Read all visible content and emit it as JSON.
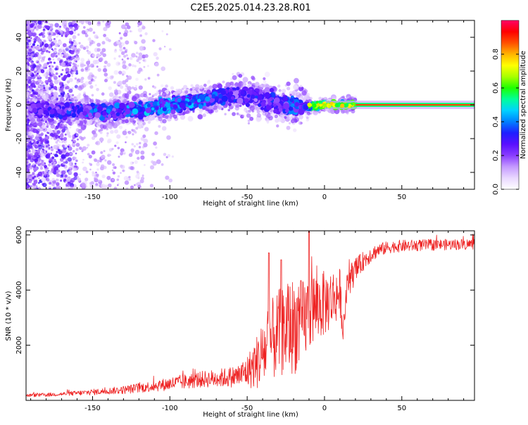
{
  "title": "C2E5.2025.014.23.28.R01",
  "chart_data": [
    {
      "type": "heatmap",
      "xlabel": "Height of straight line (km)",
      "ylabel": "Frequency (Hz)",
      "xlim": [
        -193,
        97
      ],
      "ylim": [
        -50,
        50
      ],
      "xticks": [
        -150,
        -100,
        -50,
        0,
        50
      ],
      "xtick_labels": [
        "-150",
        "-100",
        "-50",
        "0",
        "50"
      ],
      "yticks": [
        -40,
        -20,
        0,
        20,
        40
      ],
      "ytick_labels": [
        "-40",
        "-20",
        "0",
        "20",
        "40"
      ],
      "colorbar": {
        "label": "Normalized spectral amplitude",
        "range": [
          0.0,
          1.0
        ],
        "ticks": [
          0.0,
          0.2,
          0.4,
          0.6,
          0.8
        ],
        "tick_labels": [
          "0.0",
          "0.2",
          "0.4",
          "0.6",
          "0.8"
        ],
        "colormap": [
          "#ffffff",
          "#e9d8ff",
          "#c59aff",
          "#8a3dff",
          "#5a10ff",
          "#1e1eff",
          "#0080ff",
          "#00d2ff",
          "#00ff9a",
          "#1eff00",
          "#a8ff00",
          "#ffff00",
          "#ffb400",
          "#ff5000",
          "#ff0000",
          "#ff0066"
        ]
      },
      "ridge": {
        "x": [
          -190,
          -170,
          -150,
          -135,
          -120,
          -100,
          -85,
          -70,
          -60,
          -50,
          -40,
          -30,
          -20,
          -10,
          0,
          10,
          20,
          50,
          95
        ],
        "frequency": [
          -2,
          -3,
          -4,
          -4,
          -3,
          0,
          2,
          4,
          6,
          5,
          3,
          1,
          -1,
          -1,
          0,
          0,
          0,
          0,
          0
        ],
        "amplitude": [
          0.25,
          0.3,
          0.35,
          0.35,
          0.4,
          0.4,
          0.4,
          0.35,
          0.3,
          0.3,
          0.3,
          0.3,
          0.35,
          0.45,
          0.7,
          0.8,
          0.85,
          0.9,
          0.9
        ]
      },
      "grid": false
    },
    {
      "type": "line",
      "xlabel": "Height of straight line (km)",
      "ylabel": "SNR (10 * v/v)",
      "xlim": [
        -193,
        97
      ],
      "ylim": [
        0,
        6150
      ],
      "xticks": [
        -150,
        -100,
        -50,
        0,
        50
      ],
      "xtick_labels": [
        "-150",
        "-100",
        "-50",
        "0",
        "50"
      ],
      "yticks": [
        2000,
        4000,
        6000
      ],
      "ytick_labels": [
        "2000",
        "4000",
        "6000"
      ],
      "series": [
        {
          "color": "#ee2222",
          "x": [
            -193,
            -180,
            -170,
            -160,
            -150,
            -140,
            -130,
            -120,
            -110,
            -100,
            -90,
            -80,
            -70,
            -60,
            -55,
            -50,
            -45,
            -40,
            -35,
            -30,
            -25,
            -20,
            -15,
            -12,
            -10,
            -5,
            0,
            5,
            10,
            12,
            15,
            20,
            25,
            30,
            35,
            40,
            45,
            50,
            60,
            70,
            80,
            90,
            97
          ],
          "mean": [
            180,
            200,
            230,
            260,
            300,
            340,
            380,
            450,
            520,
            600,
            680,
            760,
            800,
            850,
            900,
            1050,
            1300,
            1700,
            2100,
            2400,
            2600,
            2700,
            2800,
            3000,
            3300,
            3400,
            3500,
            3700,
            3900,
            2500,
            4300,
            4700,
            5050,
            5300,
            5450,
            5530,
            5580,
            5600,
            5620,
            5640,
            5650,
            5660,
            5670
          ],
          "spread": [
            60,
            70,
            70,
            90,
            110,
            120,
            150,
            180,
            200,
            250,
            280,
            300,
            330,
            380,
            450,
            600,
            900,
            1300,
            1500,
            1600,
            1700,
            1800,
            1600,
            1500,
            1500,
            1300,
            1200,
            1100,
            900,
            300,
            600,
            450,
            350,
            300,
            250,
            230,
            220,
            220,
            210,
            210,
            200,
            200,
            200
          ],
          "peaks": [
            {
              "x": -10,
              "y": 6150
            },
            {
              "x": -36,
              "y": 5350
            },
            {
              "x": -28,
              "y": 5100
            }
          ]
        }
      ],
      "grid": false
    }
  ]
}
